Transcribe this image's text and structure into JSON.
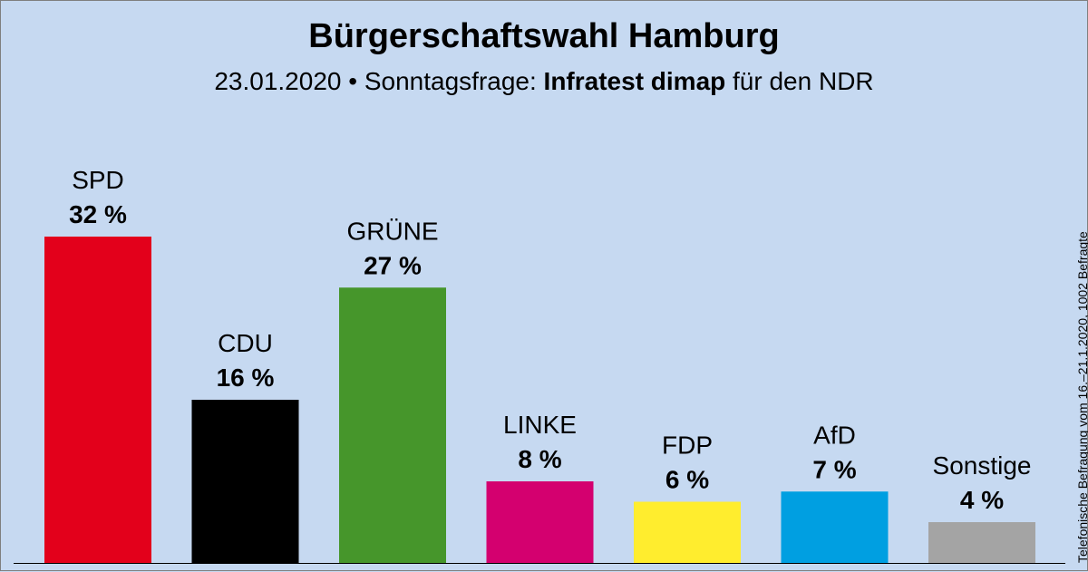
{
  "header": {
    "title": "Bürgerschaftswahl Hamburg",
    "subtitle_date": "23.01.2020",
    "subtitle_bullet": "•",
    "subtitle_type": "Sonntagsfrage:",
    "subtitle_institute": "Infratest dimap",
    "subtitle_client": "für den NDR"
  },
  "sidenote": "Telefonische Befragung vom 16.–21.1.2020, 1002 Befragte",
  "chart_data": {
    "type": "bar",
    "categories": [
      "SPD",
      "CDU",
      "GRÜNE",
      "LINKE",
      "FDP",
      "AfD",
      "Sonstige"
    ],
    "values": [
      32,
      16,
      27,
      8,
      6,
      7,
      4
    ],
    "value_labels": [
      "32 %",
      "16 %",
      "27 %",
      "8 %",
      "6 %",
      "7 %",
      "4 %"
    ],
    "colors": [
      "#e3001b",
      "#000000",
      "#46962b",
      "#d4006f",
      "#ffed2e",
      "#009fe1",
      "#a4a4a4"
    ],
    "title": "Bürgerschaftswahl Hamburg",
    "xlabel": "",
    "ylabel": "",
    "grid": false,
    "legend": "none"
  }
}
